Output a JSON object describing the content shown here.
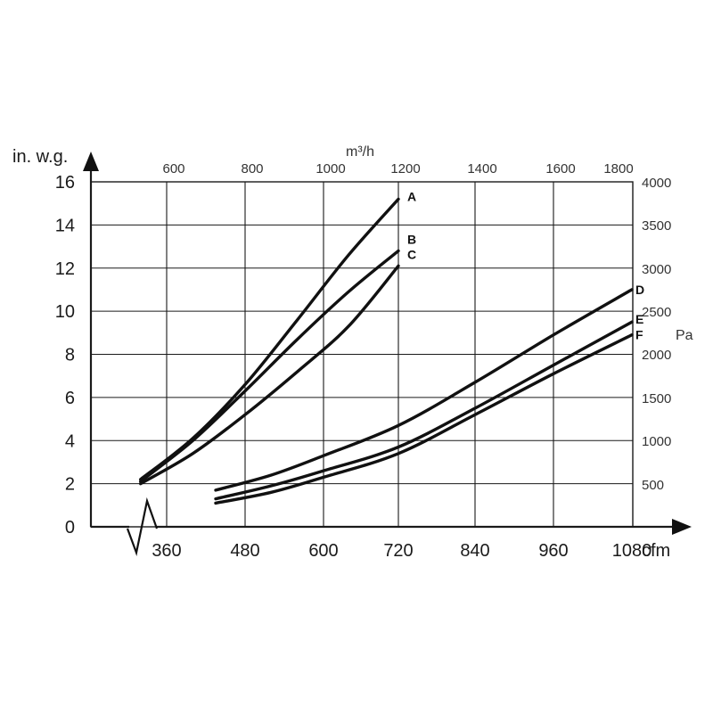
{
  "chart_data": {
    "type": "line",
    "y_axis": {
      "unit": "in. w.g.",
      "range": [
        0,
        16
      ],
      "ticks": [
        "16",
        "14",
        "12",
        "10",
        "8",
        "6",
        "4",
        "2",
        "0"
      ]
    },
    "x_axis": {
      "unit": "cfm",
      "range": [
        300,
        1080
      ],
      "axis_break": true,
      "ticks": [
        "360",
        "480",
        "600",
        "720",
        "840",
        "960",
        "1080"
      ]
    },
    "x_axis_top": {
      "unit": "m³/h",
      "ticks": [
        "600",
        "800",
        "1000",
        "1200",
        "1400",
        "1600",
        "1800"
      ]
    },
    "y_axis_right": {
      "unit": "Pa",
      "ticks": [
        "4000",
        "3500",
        "3000",
        "2500",
        "2000",
        "1500",
        "1000",
        "500"
      ]
    },
    "grid": true,
    "series": [
      {
        "name": "A",
        "points": [
          [
            320,
            2.2
          ],
          [
            400,
            4.1
          ],
          [
            480,
            6.6
          ],
          [
            560,
            9.6
          ],
          [
            640,
            12.6
          ],
          [
            720,
            15.2
          ]
        ]
      },
      {
        "name": "B",
        "points": [
          [
            320,
            2.1
          ],
          [
            400,
            4.0
          ],
          [
            480,
            6.3
          ],
          [
            560,
            8.7
          ],
          [
            640,
            10.9
          ],
          [
            720,
            12.8
          ]
        ]
      },
      {
        "name": "C",
        "points": [
          [
            320,
            2.0
          ],
          [
            400,
            3.4
          ],
          [
            480,
            5.2
          ],
          [
            560,
            7.2
          ],
          [
            640,
            9.3
          ],
          [
            720,
            12.1
          ]
        ]
      },
      {
        "name": "D",
        "points": [
          [
            435,
            1.7
          ],
          [
            520,
            2.4
          ],
          [
            600,
            3.3
          ],
          [
            720,
            4.7
          ],
          [
            840,
            6.7
          ],
          [
            960,
            8.9
          ],
          [
            1080,
            11.0
          ]
        ]
      },
      {
        "name": "E",
        "points": [
          [
            435,
            1.3
          ],
          [
            520,
            1.9
          ],
          [
            600,
            2.6
          ],
          [
            720,
            3.7
          ],
          [
            840,
            5.5
          ],
          [
            960,
            7.5
          ],
          [
            1080,
            9.5
          ]
        ]
      },
      {
        "name": "F",
        "points": [
          [
            435,
            1.1
          ],
          [
            520,
            1.6
          ],
          [
            600,
            2.3
          ],
          [
            720,
            3.4
          ],
          [
            840,
            5.2
          ],
          [
            960,
            7.1
          ],
          [
            1080,
            8.9
          ]
        ]
      }
    ]
  }
}
